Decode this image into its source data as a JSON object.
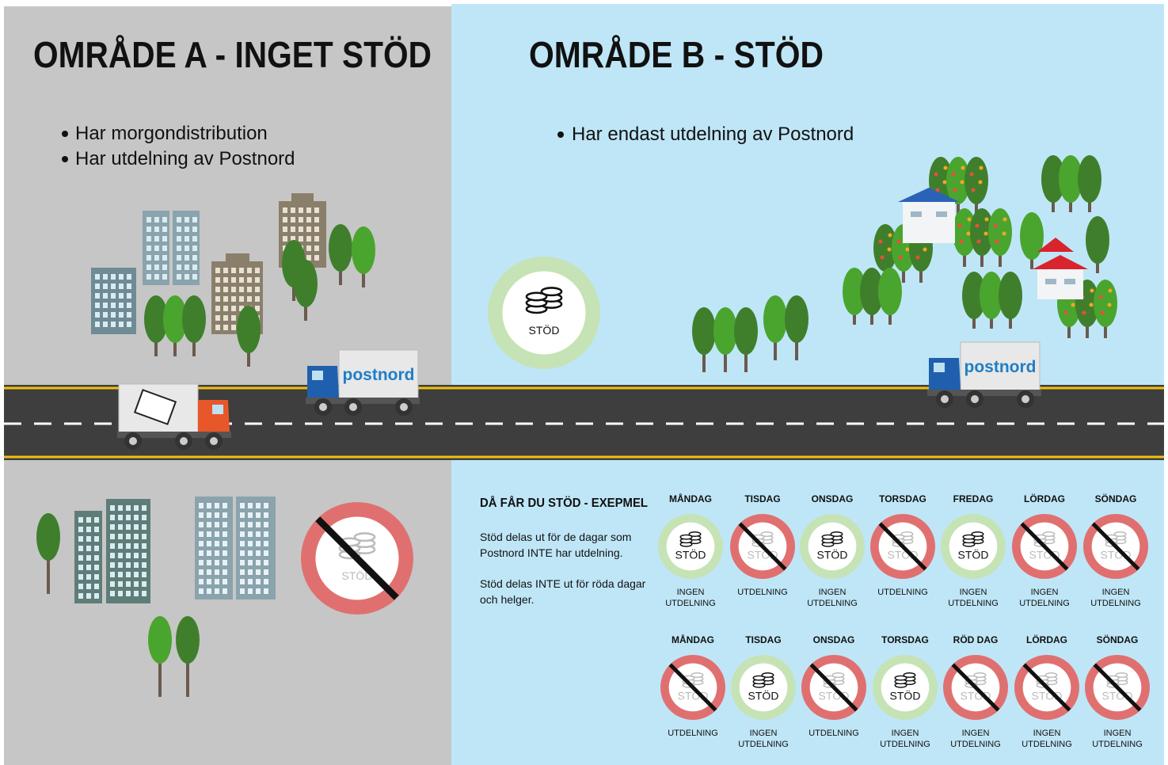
{
  "left": {
    "title": "OMRÅDE A - INGET STÖD",
    "bullets": [
      "Har morgondistribution",
      "Har utdelning av Postnord"
    ]
  },
  "right": {
    "title": "OMRÅDE B - STÖD",
    "bullets": [
      "Har endast utdelning av Postnord"
    ]
  },
  "truck_logo": "postnord",
  "badge_label": "STÖD",
  "example": {
    "title": "DÅ FÅR DU STÖD - EXEPMEL",
    "paragraphs": [
      [
        "Stöd delas ut för de dagar som",
        "Postnord INTE har utdelning."
      ],
      [
        "Stöd delas INTE ut för röda dagar",
        "och helger."
      ]
    ],
    "weeks": [
      [
        {
          "day": "MÅNDAG",
          "supported": true,
          "caption": [
            "INGEN",
            "UTDELNING"
          ]
        },
        {
          "day": "TISDAG",
          "supported": false,
          "caption": [
            "UTDELNING"
          ]
        },
        {
          "day": "ONSDAG",
          "supported": true,
          "caption": [
            "INGEN",
            "UTDELNING"
          ]
        },
        {
          "day": "TORSDAG",
          "supported": false,
          "caption": [
            "UTDELNING"
          ]
        },
        {
          "day": "FREDAG",
          "supported": true,
          "caption": [
            "INGEN",
            "UTDELNING"
          ]
        },
        {
          "day": "LÖRDAG",
          "supported": false,
          "caption": [
            "INGEN",
            "UTDELNING"
          ]
        },
        {
          "day": "SÖNDAG",
          "supported": false,
          "caption": [
            "INGEN",
            "UTDELNING"
          ]
        }
      ],
      [
        {
          "day": "MÅNDAG",
          "supported": false,
          "caption": [
            "UTDELNING"
          ]
        },
        {
          "day": "TISDAG",
          "supported": true,
          "caption": [
            "INGEN",
            "UTDELNING"
          ]
        },
        {
          "day": "ONSDAG",
          "supported": false,
          "caption": [
            "UTDELNING"
          ]
        },
        {
          "day": "TORSDAG",
          "supported": true,
          "caption": [
            "INGEN",
            "UTDELNING"
          ]
        },
        {
          "day": "RÖD DAG",
          "supported": false,
          "caption": [
            "INGEN",
            "UTDELNING"
          ]
        },
        {
          "day": "LÖRDAG",
          "supported": false,
          "caption": [
            "INGEN",
            "UTDELNING"
          ]
        },
        {
          "day": "SÖNDAG",
          "supported": false,
          "caption": [
            "INGEN",
            "UTDELNING"
          ]
        }
      ]
    ]
  }
}
